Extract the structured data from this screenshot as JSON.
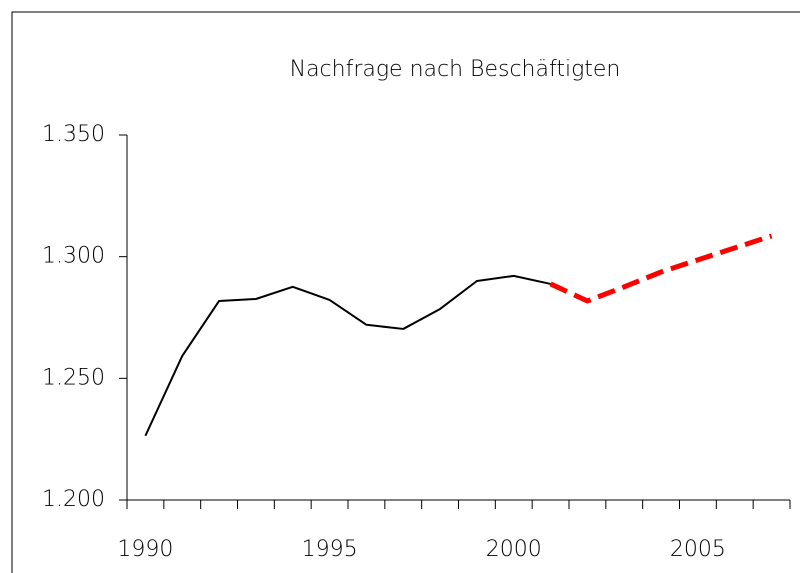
{
  "chart_data": {
    "type": "line",
    "title": "Nachfrage nach Beschäftigten",
    "categories": [
      "1990",
      null,
      null,
      null,
      null,
      "1995",
      null,
      null,
      null,
      null,
      "2000",
      null,
      null,
      null,
      null,
      "2005",
      null,
      null
    ],
    "series": [
      {
        "color": "#000000",
        "dashed": false,
        "values": [
          1226.4,
          1259.2,
          1281.8,
          1282.6,
          1287.6,
          1282.2,
          1272.0,
          1270.3,
          1278.5,
          1290.0,
          1292.1,
          1288.8,
          null,
          null,
          null,
          null,
          null,
          null
        ]
      },
      {
        "color": "#ff0000",
        "dashed": true,
        "values": [
          null,
          null,
          null,
          null,
          null,
          null,
          null,
          null,
          null,
          null,
          null,
          1288.8,
          1281.8,
          1287.6,
          1293.7,
          1298.7,
          1303.6,
          1308.5
        ]
      }
    ],
    "ylim": [
      1200,
      1350
    ],
    "yticks": [
      {
        "value": 1200,
        "label": "1.200"
      },
      {
        "value": 1250,
        "label": "1.250"
      },
      {
        "value": 1300,
        "label": "1.300"
      },
      {
        "value": 1350,
        "label": "1.350"
      }
    ],
    "grid": false
  }
}
